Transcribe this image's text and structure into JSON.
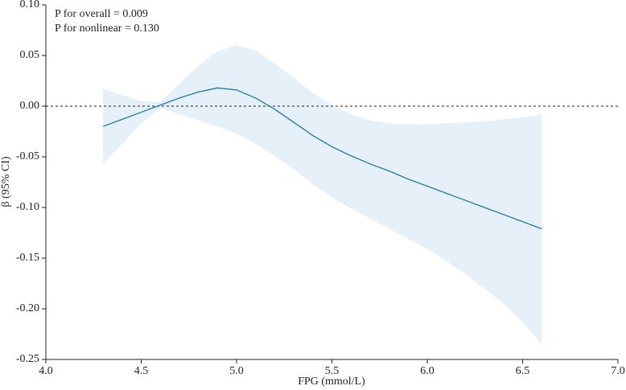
{
  "chart_data": {
    "type": "spline",
    "xlabel": "FPG (mmol/L)",
    "ylabel": "β (95% CI)",
    "annotations": [
      "P for overall = 0.009",
      "P for nonlinear = 0.130"
    ],
    "x": [
      4.3,
      4.4,
      4.5,
      4.6,
      4.7,
      4.8,
      4.9,
      5.0,
      5.1,
      5.2,
      5.3,
      5.4,
      5.5,
      5.6,
      5.7,
      5.8,
      5.9,
      6.0,
      6.1,
      6.2,
      6.3,
      6.4,
      6.5,
      6.6
    ],
    "series": [
      {
        "color": "#1f77b4",
        "values": [
          -0.02,
          -0.013,
          -0.006,
          0.001,
          0.008,
          0.014,
          0.018,
          0.016,
          0.008,
          -0.003,
          -0.016,
          -0.029,
          -0.04,
          -0.049,
          -0.057,
          -0.064,
          -0.072,
          -0.079,
          -0.086,
          -0.093,
          -0.1,
          -0.107,
          -0.114,
          -0.121
        ]
      }
    ],
    "band": {
      "color": "#e6f0f8",
      "upper": [
        0.017,
        0.011,
        0.005,
        0.004,
        0.022,
        0.04,
        0.054,
        0.06,
        0.055,
        0.042,
        0.028,
        0.013,
        0.001,
        -0.008,
        -0.014,
        -0.017,
        -0.018,
        -0.018,
        -0.017,
        -0.016,
        -0.015,
        -0.013,
        -0.011,
        -0.008
      ],
      "lower": [
        -0.057,
        -0.037,
        -0.017,
        -0.002,
        -0.008,
        -0.014,
        -0.02,
        -0.027,
        -0.037,
        -0.049,
        -0.062,
        -0.077,
        -0.09,
        -0.101,
        -0.111,
        -0.121,
        -0.131,
        -0.141,
        -0.153,
        -0.166,
        -0.18,
        -0.195,
        -0.213,
        -0.235
      ]
    },
    "hline": 0,
    "xlim": [
      4.0,
      7.0
    ],
    "ylim": [
      -0.25,
      0.1
    ],
    "xticks": [
      {
        "value": 4.0,
        "label": "4.0"
      },
      4.5,
      {
        "value": 5.0,
        "label": "5.0"
      },
      5.5,
      {
        "value": 6.0,
        "label": "6.0"
      },
      6.5,
      {
        "value": 7.0,
        "label": "7.0"
      }
    ],
    "yticks": [
      {
        "value": 0.1,
        "label": "0.10"
      },
      0.05,
      {
        "value": 0,
        "label": "0.00"
      },
      -0.05,
      {
        "value": -0.1,
        "label": "-0.10"
      },
      -0.15,
      {
        "value": -0.2,
        "label": "-0.20"
      },
      -0.25
    ]
  }
}
